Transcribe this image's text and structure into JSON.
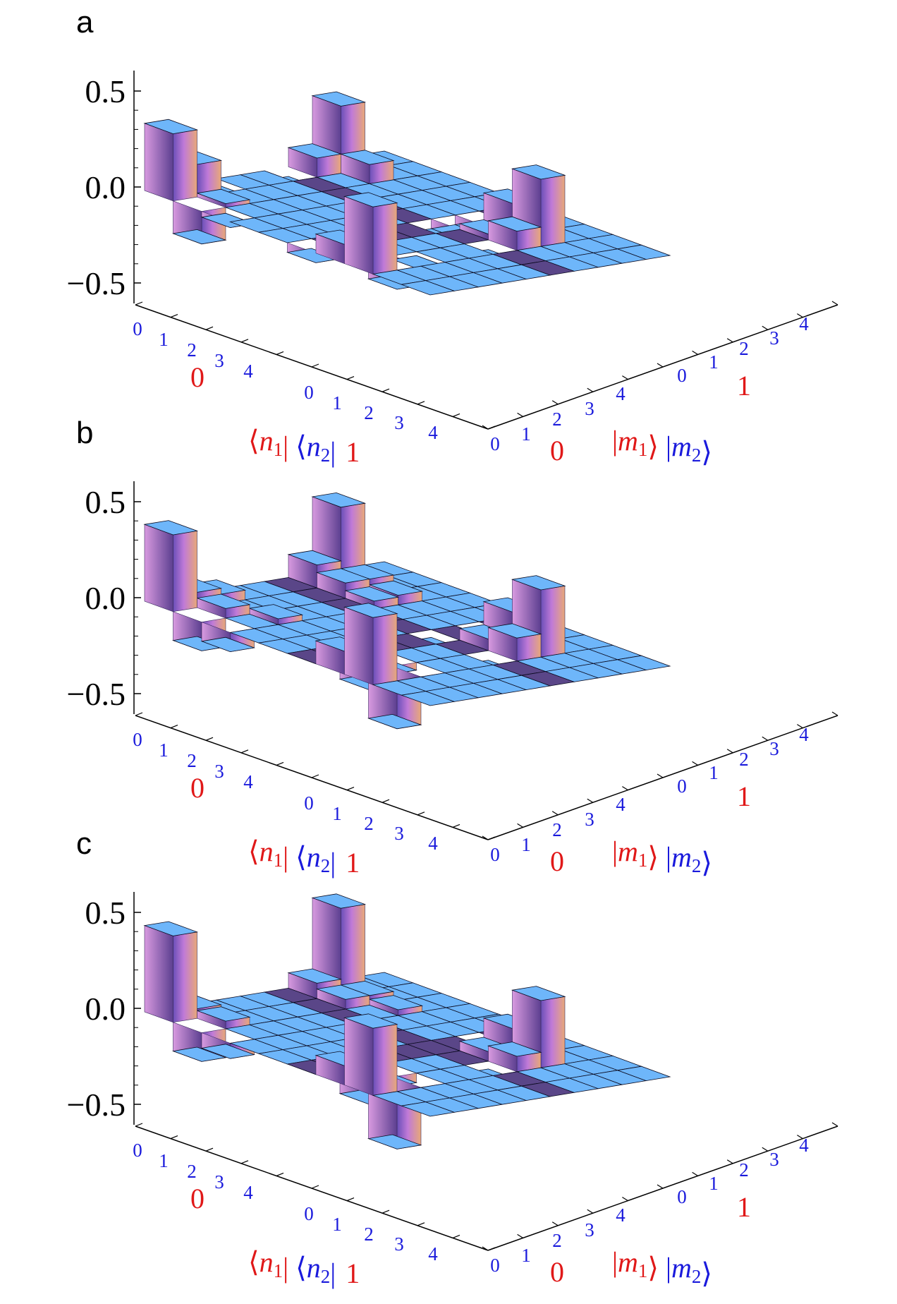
{
  "chart_data": [
    {
      "type": "bar3d",
      "panel": "a",
      "z_ticks": [
        "0.5",
        "0.0",
        "−0.5"
      ],
      "zlim": [
        -0.5,
        0.5
      ],
      "row_axis": {
        "block_labels": [
          "0",
          "1"
        ],
        "index_labels": [
          "0",
          "1",
          "2",
          "3",
          "4"
        ],
        "label_parts": [
          "⟨",
          "n",
          "1",
          "| ",
          "⟨",
          "n",
          "2",
          "|"
        ]
      },
      "col_axis": {
        "block_labels": [
          "0",
          "1"
        ],
        "index_labels": [
          "0",
          "1",
          "2",
          "3",
          "4"
        ],
        "label_parts": [
          "|",
          "m",
          "1",
          "⟩ ",
          "|",
          "m",
          "2",
          "⟩"
        ]
      },
      "bars": [
        {
          "row": 0,
          "col": 0,
          "z": 0.35
        },
        {
          "row": 0,
          "col": 7,
          "z": 0.35
        },
        {
          "row": 7,
          "col": 0,
          "z": 0.35
        },
        {
          "row": 7,
          "col": 7,
          "z": 0.35
        },
        {
          "row": 0,
          "col": 1,
          "z": 0.17
        },
        {
          "row": 1,
          "col": 0,
          "z": -0.17
        },
        {
          "row": 7,
          "col": 6,
          "z": 0.1
        },
        {
          "row": 6,
          "col": 7,
          "z": 0.17
        },
        {
          "row": 0,
          "col": 6,
          "z": 0.1
        },
        {
          "row": 6,
          "col": 0,
          "z": 0.1
        },
        {
          "row": 1,
          "col": 7,
          "z": 0.1
        },
        {
          "row": 7,
          "col": 1,
          "z": -0.1
        },
        {
          "row": 0,
          "col": 5,
          "z": -0.05
        },
        {
          "row": 5,
          "col": 0,
          "z": -0.05
        },
        {
          "row": 7,
          "col": 5,
          "z": -0.05
        },
        {
          "row": 5,
          "col": 7,
          "z": -0.05
        },
        {
          "row": 2,
          "col": 0,
          "z": -0.03
        },
        {
          "row": 0,
          "col": 2,
          "z": -0.03
        },
        {
          "row": 6,
          "col": 6,
          "z": 0.03
        },
        {
          "row": 1,
          "col": 1,
          "z": 0.02
        },
        {
          "row": 7,
          "col": 2,
          "z": -0.02
        },
        {
          "row": 5,
          "col": 0,
          "z": -0.05
        },
        {
          "row": 5,
          "col": 5,
          "z": -0.05
        },
        {
          "row": 5,
          "col": 6,
          "z": -0.05
        }
      ]
    },
    {
      "type": "bar3d",
      "panel": "b",
      "z_ticks": [
        "0.5",
        "0.0",
        "−0.5"
      ],
      "zlim": [
        -0.5,
        0.5
      ],
      "row_axis": {
        "block_labels": [
          "0",
          "1"
        ],
        "index_labels": [
          "0",
          "1",
          "2",
          "3",
          "4"
        ],
        "label_parts": [
          "⟨",
          "n",
          "1",
          "| ",
          "⟨",
          "n",
          "2",
          "|"
        ]
      },
      "col_axis": {
        "block_labels": [
          "0",
          "1"
        ],
        "index_labels": [
          "0",
          "1",
          "2",
          "3",
          "4"
        ],
        "label_parts": [
          "|",
          "m",
          "1",
          "⟩ ",
          "|",
          "m",
          "2",
          "⟩"
        ]
      },
      "bars": [
        {
          "row": 0,
          "col": 0,
          "z": 0.4
        },
        {
          "row": 0,
          "col": 7,
          "z": 0.4
        },
        {
          "row": 7,
          "col": 0,
          "z": 0.35
        },
        {
          "row": 7,
          "col": 7,
          "z": 0.35
        },
        {
          "row": 0,
          "col": 1,
          "z": 0.08
        },
        {
          "row": 1,
          "col": 0,
          "z": -0.15
        },
        {
          "row": 7,
          "col": 6,
          "z": 0.12
        },
        {
          "row": 6,
          "col": 7,
          "z": 0.18
        },
        {
          "row": 0,
          "col": 6,
          "z": 0.12
        },
        {
          "row": 6,
          "col": 0,
          "z": 0.12
        },
        {
          "row": 1,
          "col": 7,
          "z": 0.08
        },
        {
          "row": 7,
          "col": 1,
          "z": -0.25
        },
        {
          "row": 2,
          "col": 0,
          "z": -0.1
        },
        {
          "row": 0,
          "col": 2,
          "z": 0.05
        },
        {
          "row": 7,
          "col": 2,
          "z": -0.12
        },
        {
          "row": 2,
          "col": 7,
          "z": 0.05
        },
        {
          "row": 6,
          "col": 6,
          "z": 0.06
        },
        {
          "row": 1,
          "col": 1,
          "z": 0.05
        },
        {
          "row": 6,
          "col": 1,
          "z": -0.1
        },
        {
          "row": 1,
          "col": 6,
          "z": 0.08
        },
        {
          "row": 5,
          "col": 7,
          "z": -0.05
        },
        {
          "row": 7,
          "col": 5,
          "z": -0.05
        },
        {
          "row": 2,
          "col": 2,
          "z": 0.03
        },
        {
          "row": 5,
          "col": 5,
          "z": -0.04
        },
        {
          "row": 2,
          "col": 6,
          "z": 0.04
        },
        {
          "row": 6,
          "col": 2,
          "z": -0.04
        }
      ]
    },
    {
      "type": "bar3d",
      "panel": "c",
      "z_ticks": [
        "0.5",
        "0.0",
        "−0.5"
      ],
      "zlim": [
        -0.5,
        0.5
      ],
      "row_axis": {
        "block_labels": [
          "0",
          "1"
        ],
        "index_labels": [
          "0",
          "1",
          "2",
          "3",
          "4"
        ],
        "label_parts": [
          "⟨",
          "n",
          "1",
          "| ",
          "⟨",
          "n",
          "2",
          "|"
        ]
      },
      "col_axis": {
        "block_labels": [
          "0",
          "1"
        ],
        "index_labels": [
          "0",
          "1",
          "2",
          "3",
          "4"
        ],
        "label_parts": [
          "|",
          "m",
          "1",
          "⟩ ",
          "|",
          "m",
          "2",
          "⟩"
        ]
      },
      "bars": [
        {
          "row": 0,
          "col": 0,
          "z": 0.45
        },
        {
          "row": 0,
          "col": 7,
          "z": 0.45
        },
        {
          "row": 7,
          "col": 0,
          "z": 0.35
        },
        {
          "row": 7,
          "col": 7,
          "z": 0.35
        },
        {
          "row": 0,
          "col": 1,
          "z": 0.05
        },
        {
          "row": 1,
          "col": 0,
          "z": -0.15
        },
        {
          "row": 7,
          "col": 6,
          "z": 0.08
        },
        {
          "row": 6,
          "col": 7,
          "z": 0.15
        },
        {
          "row": 0,
          "col": 6,
          "z": 0.08
        },
        {
          "row": 6,
          "col": 0,
          "z": 0.1
        },
        {
          "row": 1,
          "col": 7,
          "z": 0.05
        },
        {
          "row": 7,
          "col": 1,
          "z": -0.3
        },
        {
          "row": 2,
          "col": 0,
          "z": -0.08
        },
        {
          "row": 7,
          "col": 2,
          "z": -0.12
        },
        {
          "row": 6,
          "col": 1,
          "z": -0.12
        },
        {
          "row": 1,
          "col": 1,
          "z": 0.04
        },
        {
          "row": 6,
          "col": 6,
          "z": 0.05
        },
        {
          "row": 1,
          "col": 6,
          "z": 0.05
        },
        {
          "row": 5,
          "col": 7,
          "z": -0.04
        },
        {
          "row": 7,
          "col": 5,
          "z": -0.04
        },
        {
          "row": 2,
          "col": 7,
          "z": 0.03
        },
        {
          "row": 6,
          "col": 2,
          "z": -0.05
        }
      ]
    }
  ]
}
